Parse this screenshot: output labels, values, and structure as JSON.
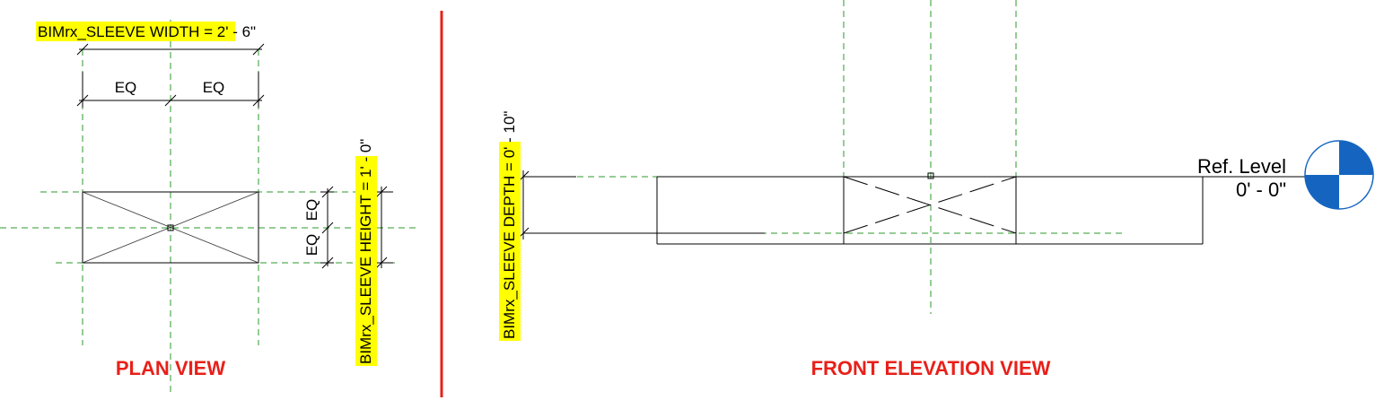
{
  "plan_view": {
    "title": "PLAN VIEW",
    "width_param": "BIMrx_SLEEVE WIDTH",
    "width_value": " = 2' - 6\"",
    "eq_left": "EQ",
    "eq_right": "EQ",
    "eq_upper": "EQ",
    "eq_lower": "EQ",
    "height_param": "BIMrx_SLEEVE HEIGHT",
    "height_value": " = 1' - 0\""
  },
  "elevation_view": {
    "title": "FRONT ELEVATION VIEW",
    "depth_param": "BIMrx_SLEEVE DEPTH",
    "depth_value": " = 0' - 10\"",
    "level_name": "Ref. Level",
    "level_elevation": "0' - 0\""
  },
  "colors": {
    "title_red": "#e8201a",
    "divider_red": "#e8201a",
    "reference_green": "#2e9a2e",
    "highlight_yellow": "#ffff00",
    "level_blue": "#1565c0"
  }
}
